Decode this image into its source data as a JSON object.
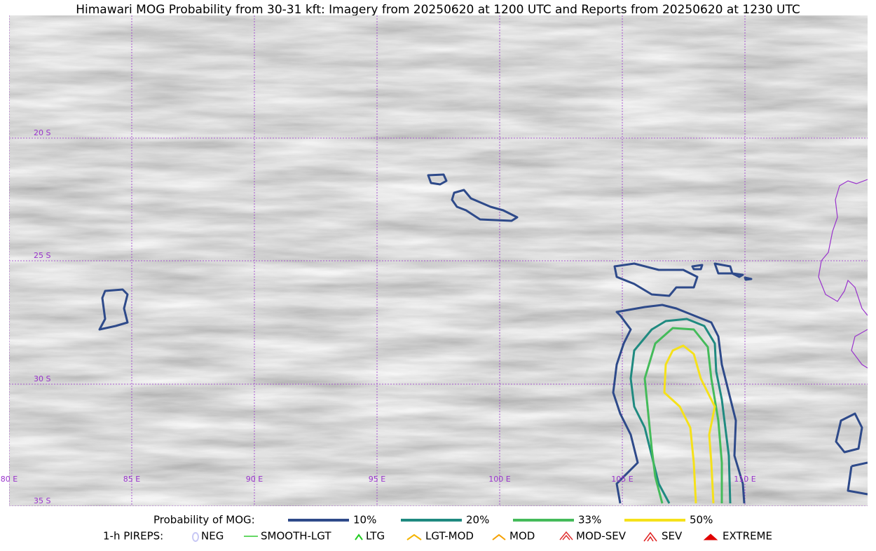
{
  "title": "Himawari MOG Probability from 30-31 kft: Imagery from 20250620 at 1200 UTC and Reports from 20250620 at 1230 UTC",
  "map": {
    "lat_labels": [
      "20 S",
      "25 S",
      "30 S",
      "35 S"
    ],
    "lon_labels": [
      "80 E",
      "85 E",
      "90 E",
      "95 E",
      "100 E",
      "105 E",
      "110 E"
    ]
  },
  "legend": {
    "probability": {
      "label": "Probability of MOG:",
      "items": [
        {
          "label": "10%",
          "color": "#2e4a8a"
        },
        {
          "label": "20%",
          "color": "#1f8a80"
        },
        {
          "label": "33%",
          "color": "#44bb5a"
        },
        {
          "label": "50%",
          "color": "#f5e11a"
        }
      ]
    },
    "pireps": {
      "label": "1-h PIREPS:",
      "items": [
        {
          "label": "NEG",
          "color": "#c8c8f5"
        },
        {
          "label": "SMOOTH-LGT",
          "color": "#33cc33"
        },
        {
          "label": "LTG",
          "color": "#22cc22"
        },
        {
          "label": "LGT-MOD",
          "color": "#f5b400"
        },
        {
          "label": "MOD",
          "color": "#f5a000"
        },
        {
          "label": "MOD-SEV",
          "color": "#e03030"
        },
        {
          "label": "SEV",
          "color": "#e02020"
        },
        {
          "label": "EXTREME",
          "color": "#e00000"
        }
      ]
    }
  }
}
